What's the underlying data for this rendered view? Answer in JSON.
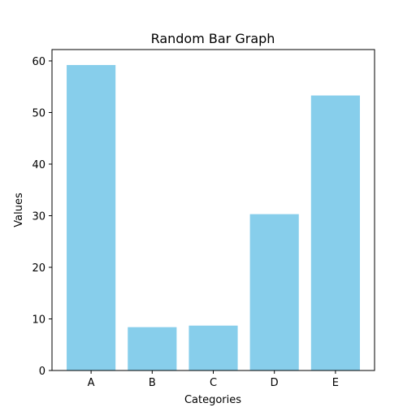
{
  "chart_data": {
    "type": "bar",
    "title": "Random Bar Graph",
    "xlabel": "Categories",
    "ylabel": "Values",
    "categories": [
      "A",
      "B",
      "C",
      "D",
      "E"
    ],
    "values": [
      59.2,
      8.4,
      8.7,
      30.3,
      53.3
    ],
    "ylim": [
      0,
      62.2
    ],
    "yticks": [
      0,
      10,
      20,
      30,
      40,
      50,
      60
    ],
    "grid": false,
    "bar_color": "#87ceeb"
  }
}
